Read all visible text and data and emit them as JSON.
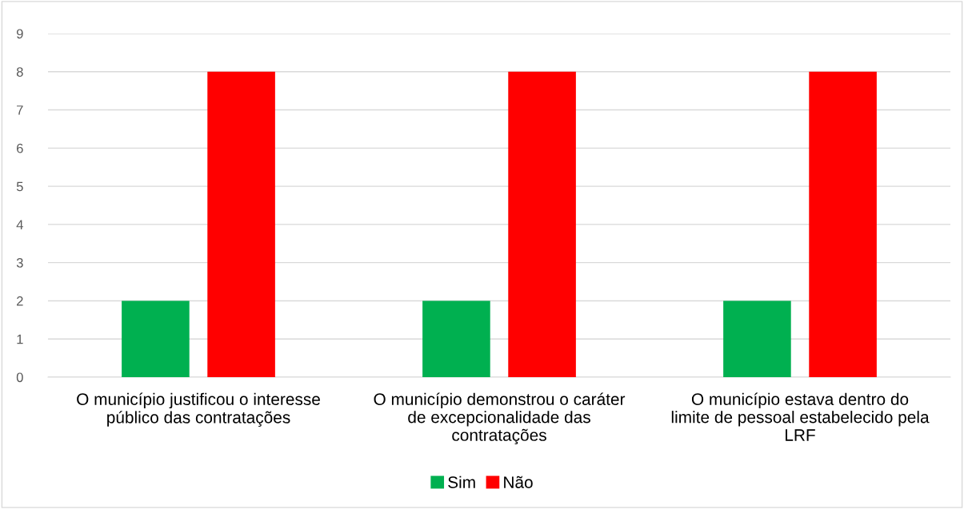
{
  "chart_data": {
    "type": "bar",
    "categories": [
      "O município justificou o interesse\npúblico das contratações",
      "O município demonstrou o caráter\nde excepcionalidade das\ncontratações",
      "O município estava dentro do\nlimite de pessoal estabelecido pela\nLRF"
    ],
    "series": [
      {
        "name": "Sim",
        "color": "#00b050",
        "values": [
          2,
          2,
          2
        ]
      },
      {
        "name": "Não",
        "color": "#ff0000",
        "values": [
          8,
          8,
          8
        ]
      }
    ],
    "ylim": [
      0,
      9
    ],
    "yticks": [
      0,
      1,
      2,
      3,
      4,
      5,
      6,
      7,
      8,
      9
    ],
    "grid": "y",
    "legend": "bottom"
  }
}
